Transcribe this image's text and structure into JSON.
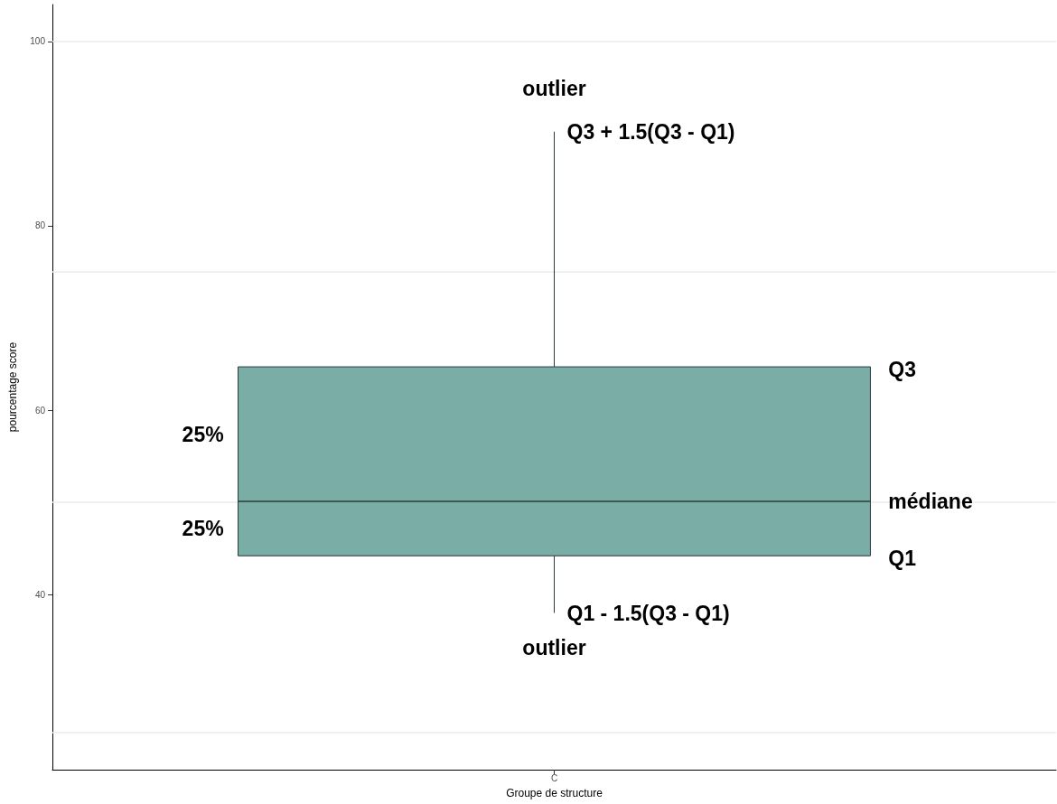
{
  "chart_data": {
    "type": "box",
    "xlabel": "Groupe de structure",
    "ylabel": "pourcentage score",
    "categories": [
      "C"
    ],
    "series": [
      {
        "color": "#7aada5",
        "boxes": [
          {
            "low": 38.0,
            "q1": 44.2,
            "median": 50.1,
            "q3": 64.7,
            "high": 90.2
          }
        ]
      }
    ],
    "ylim": [
      21,
      104
    ],
    "yticks": [
      40,
      60,
      80,
      100
    ],
    "grid": false,
    "ref_lines": [
      {
        "axis": "y",
        "value": 25,
        "color": "#ebebeb"
      },
      {
        "axis": "y",
        "value": 50,
        "color": "#ebebeb"
      },
      {
        "axis": "y",
        "value": 75,
        "color": "#ebebeb"
      },
      {
        "axis": "y",
        "value": 100,
        "color": "#ebebeb"
      }
    ],
    "annotations": [
      "outlier",
      {
        "text": "Q3 + 1.5(Q3 - Q1)",
        "x": "C",
        "y": 90.2
      },
      "Q3",
      "25%",
      "médiane",
      "25%",
      "Q1",
      {
        "text": "Q1 - 1.5(Q3 - Q1)",
        "x": "C",
        "y": 38.0
      },
      "outlier"
    ]
  }
}
